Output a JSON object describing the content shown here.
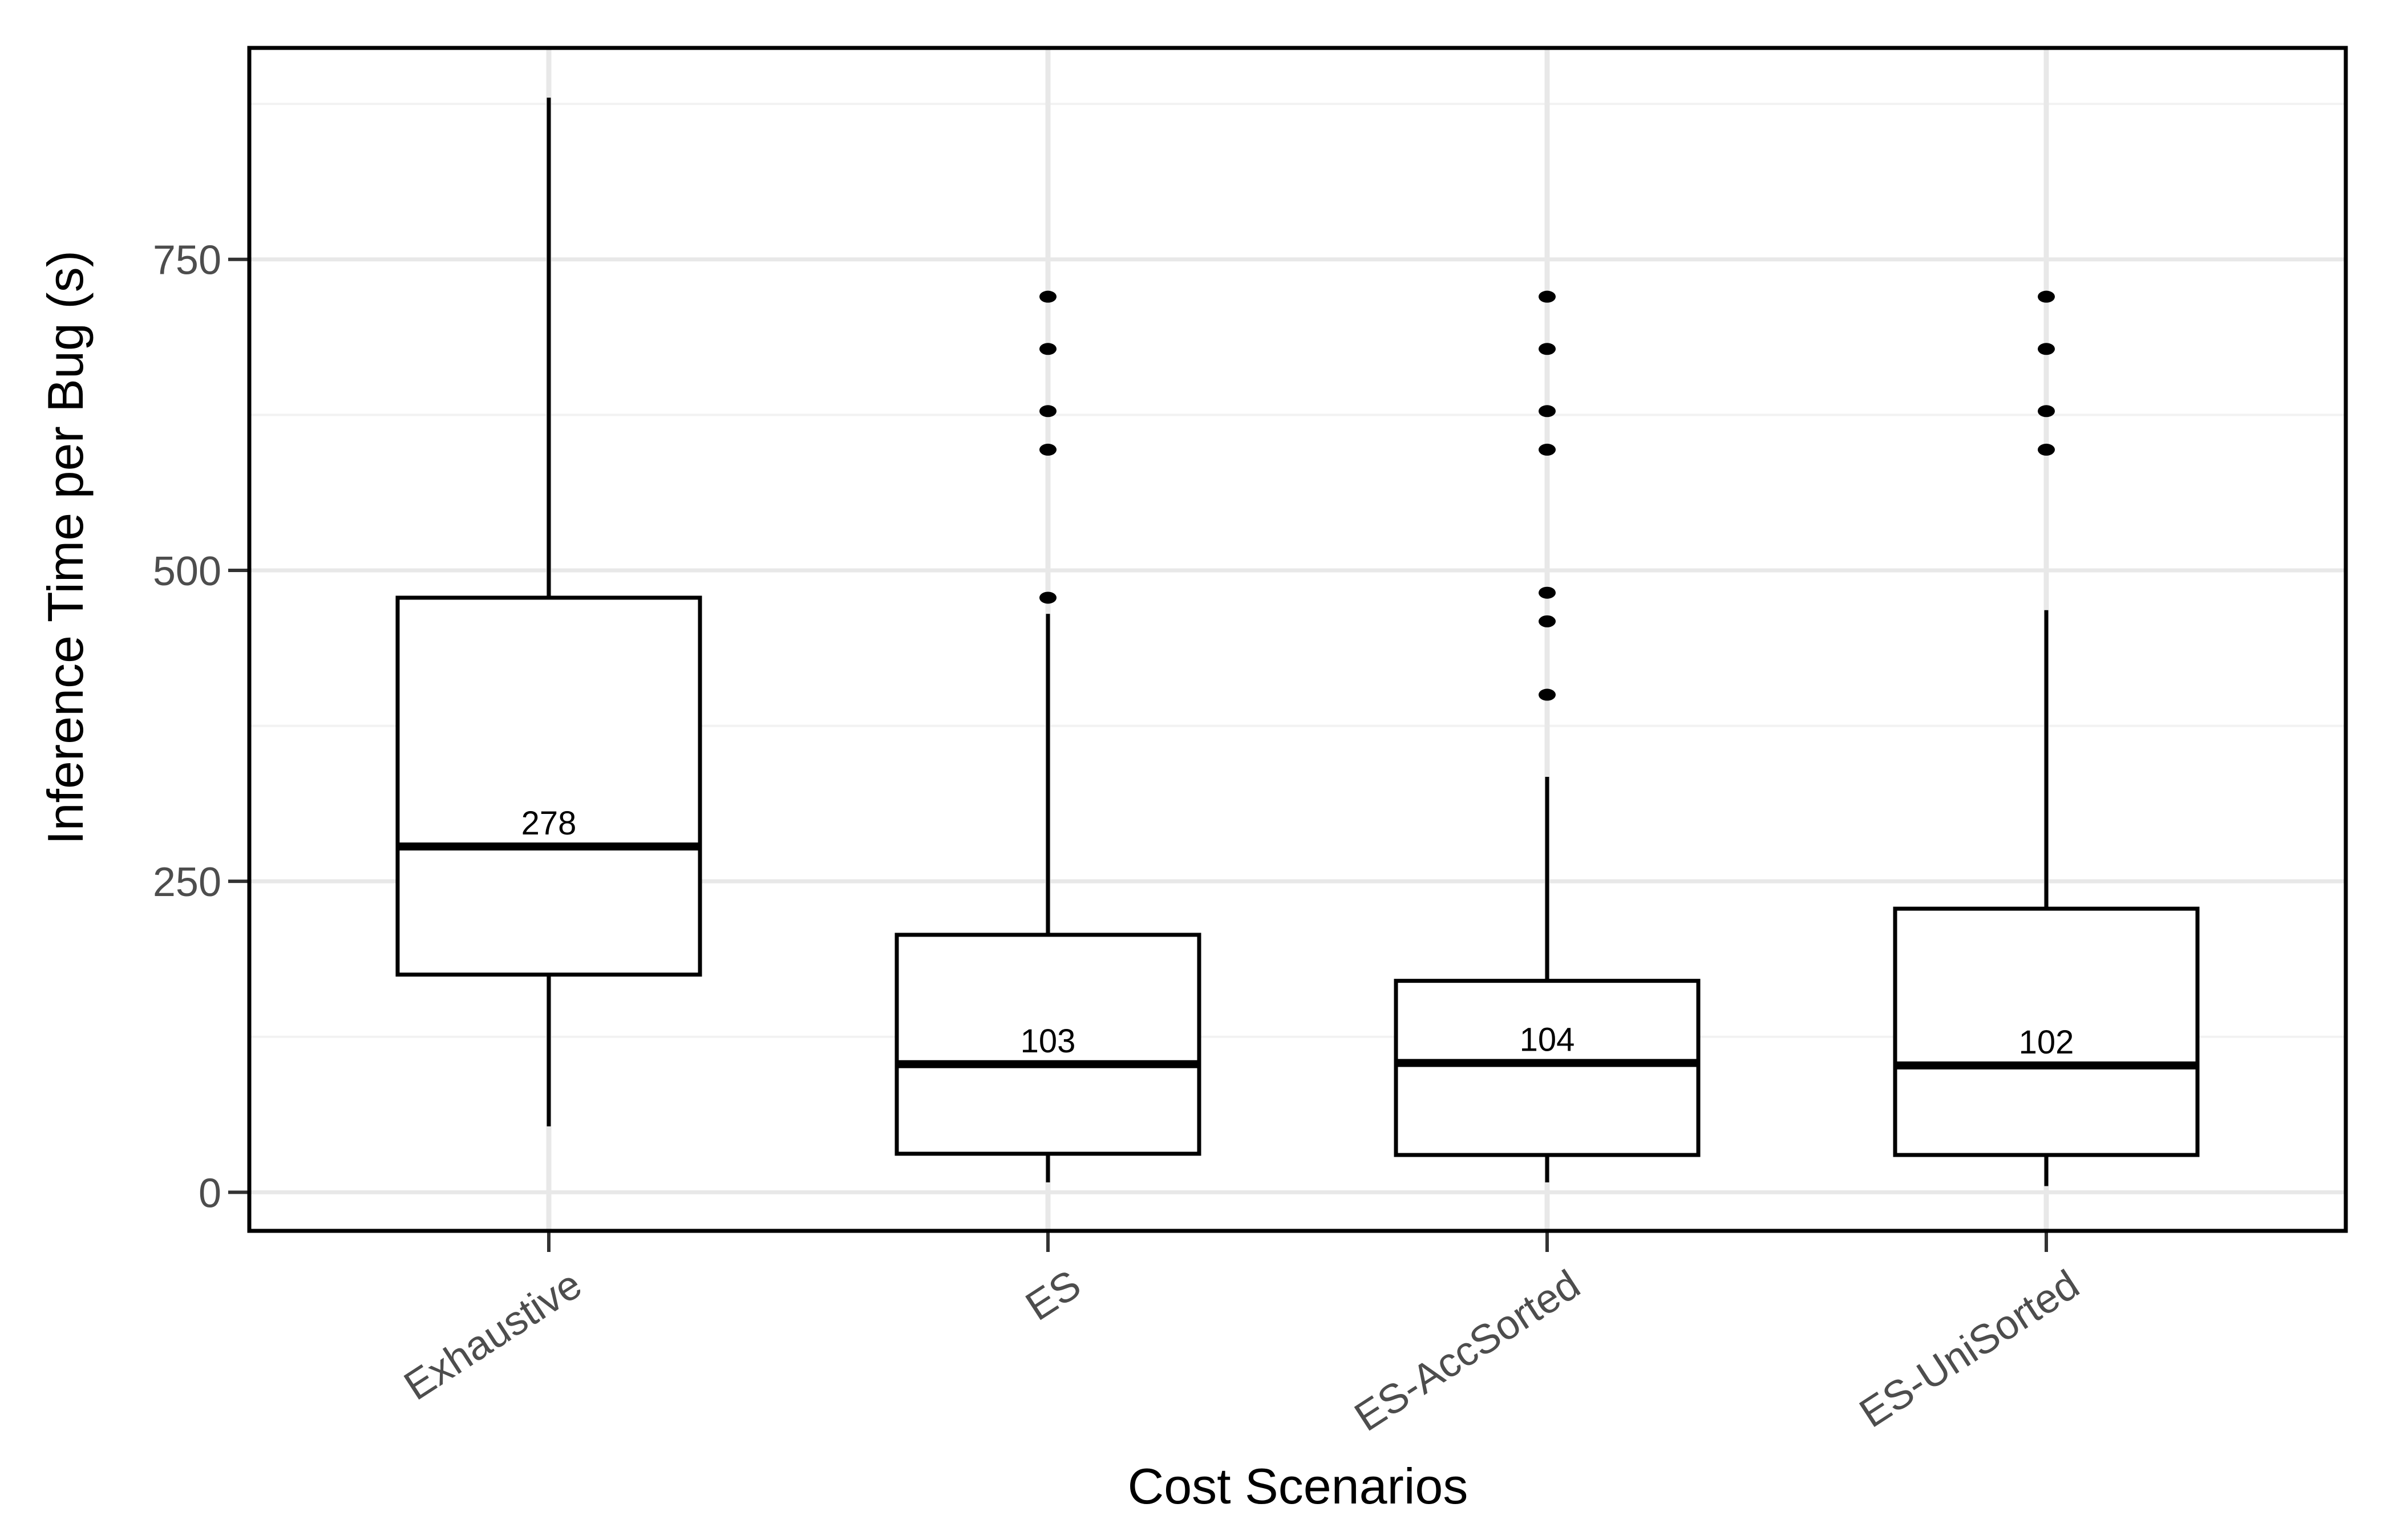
{
  "chart_data": {
    "type": "boxplot",
    "title": "",
    "xlabel": "Cost Scenarios",
    "ylabel": "Inference Time per Bug (s)",
    "categories": [
      "Exhaustive",
      "ES",
      "ES-AccSorted",
      "ES-UniSorted"
    ],
    "y_ticks": [
      0,
      250,
      500,
      750
    ],
    "y_minor_ticks": [
      125,
      375,
      625,
      875
    ],
    "ylim": [
      -31,
      920
    ],
    "grid": true,
    "legend": "none",
    "series": [
      {
        "name": "Exhaustive",
        "whisker_low": 53,
        "q1": 175,
        "median": 278,
        "q3": 478,
        "whisker_high": 880,
        "outliers": [],
        "median_label": "278"
      },
      {
        "name": "ES",
        "whisker_low": 8,
        "q1": 31,
        "median": 103,
        "q3": 207,
        "whisker_high": 465,
        "outliers": [
          720,
          678,
          628,
          597,
          478
        ],
        "median_label": "103"
      },
      {
        "name": "ES-AccSorted",
        "whisker_low": 8,
        "q1": 30,
        "median": 104,
        "q3": 170,
        "whisker_high": 334,
        "outliers": [
          720,
          678,
          628,
          597,
          482,
          459,
          400
        ],
        "median_label": "104"
      },
      {
        "name": "ES-UniSorted",
        "whisker_low": 5,
        "q1": 30,
        "median": 102,
        "q3": 228,
        "whisker_high": 468,
        "outliers": [
          720,
          678,
          628,
          597
        ],
        "median_label": "102"
      }
    ],
    "colors": {
      "axis_text": "#4d4d4d",
      "axis_title": "#000000",
      "box_stroke": "#000000",
      "box_fill": "#ffffff",
      "outlier": "#000000",
      "grid_major": "#e8e8e8",
      "grid_minor": "#f2f2f2",
      "tick_mark": "#333333",
      "panel_border": "#000000",
      "background": "#ffffff"
    }
  }
}
